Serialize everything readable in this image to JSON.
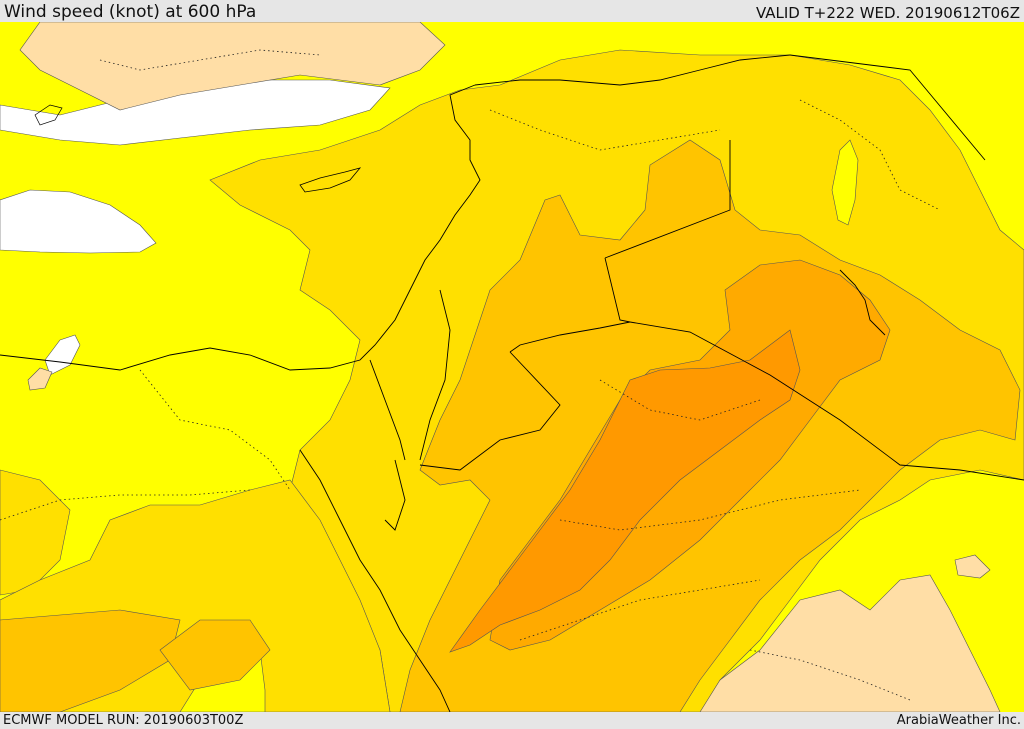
{
  "header": {
    "title": "Wind speed (knot) at 600 hPa",
    "valid": "VALID T+222 WED. 20190612T06Z"
  },
  "footer": {
    "model_run": "ECMWF MODEL RUN: 20190603T00Z",
    "credit": "ArabiaWeather Inc."
  },
  "map": {
    "field": "wind speed",
    "level": "600 hPa",
    "unit": "knot",
    "colors": {
      "lightest": "#ffffff",
      "light_tan": "#ffdea6",
      "yellow": "#ffff00",
      "gold": "#ffe000",
      "amber": "#ffc400",
      "orange": "#ffaa00",
      "deep_orange": "#ff9900"
    }
  }
}
